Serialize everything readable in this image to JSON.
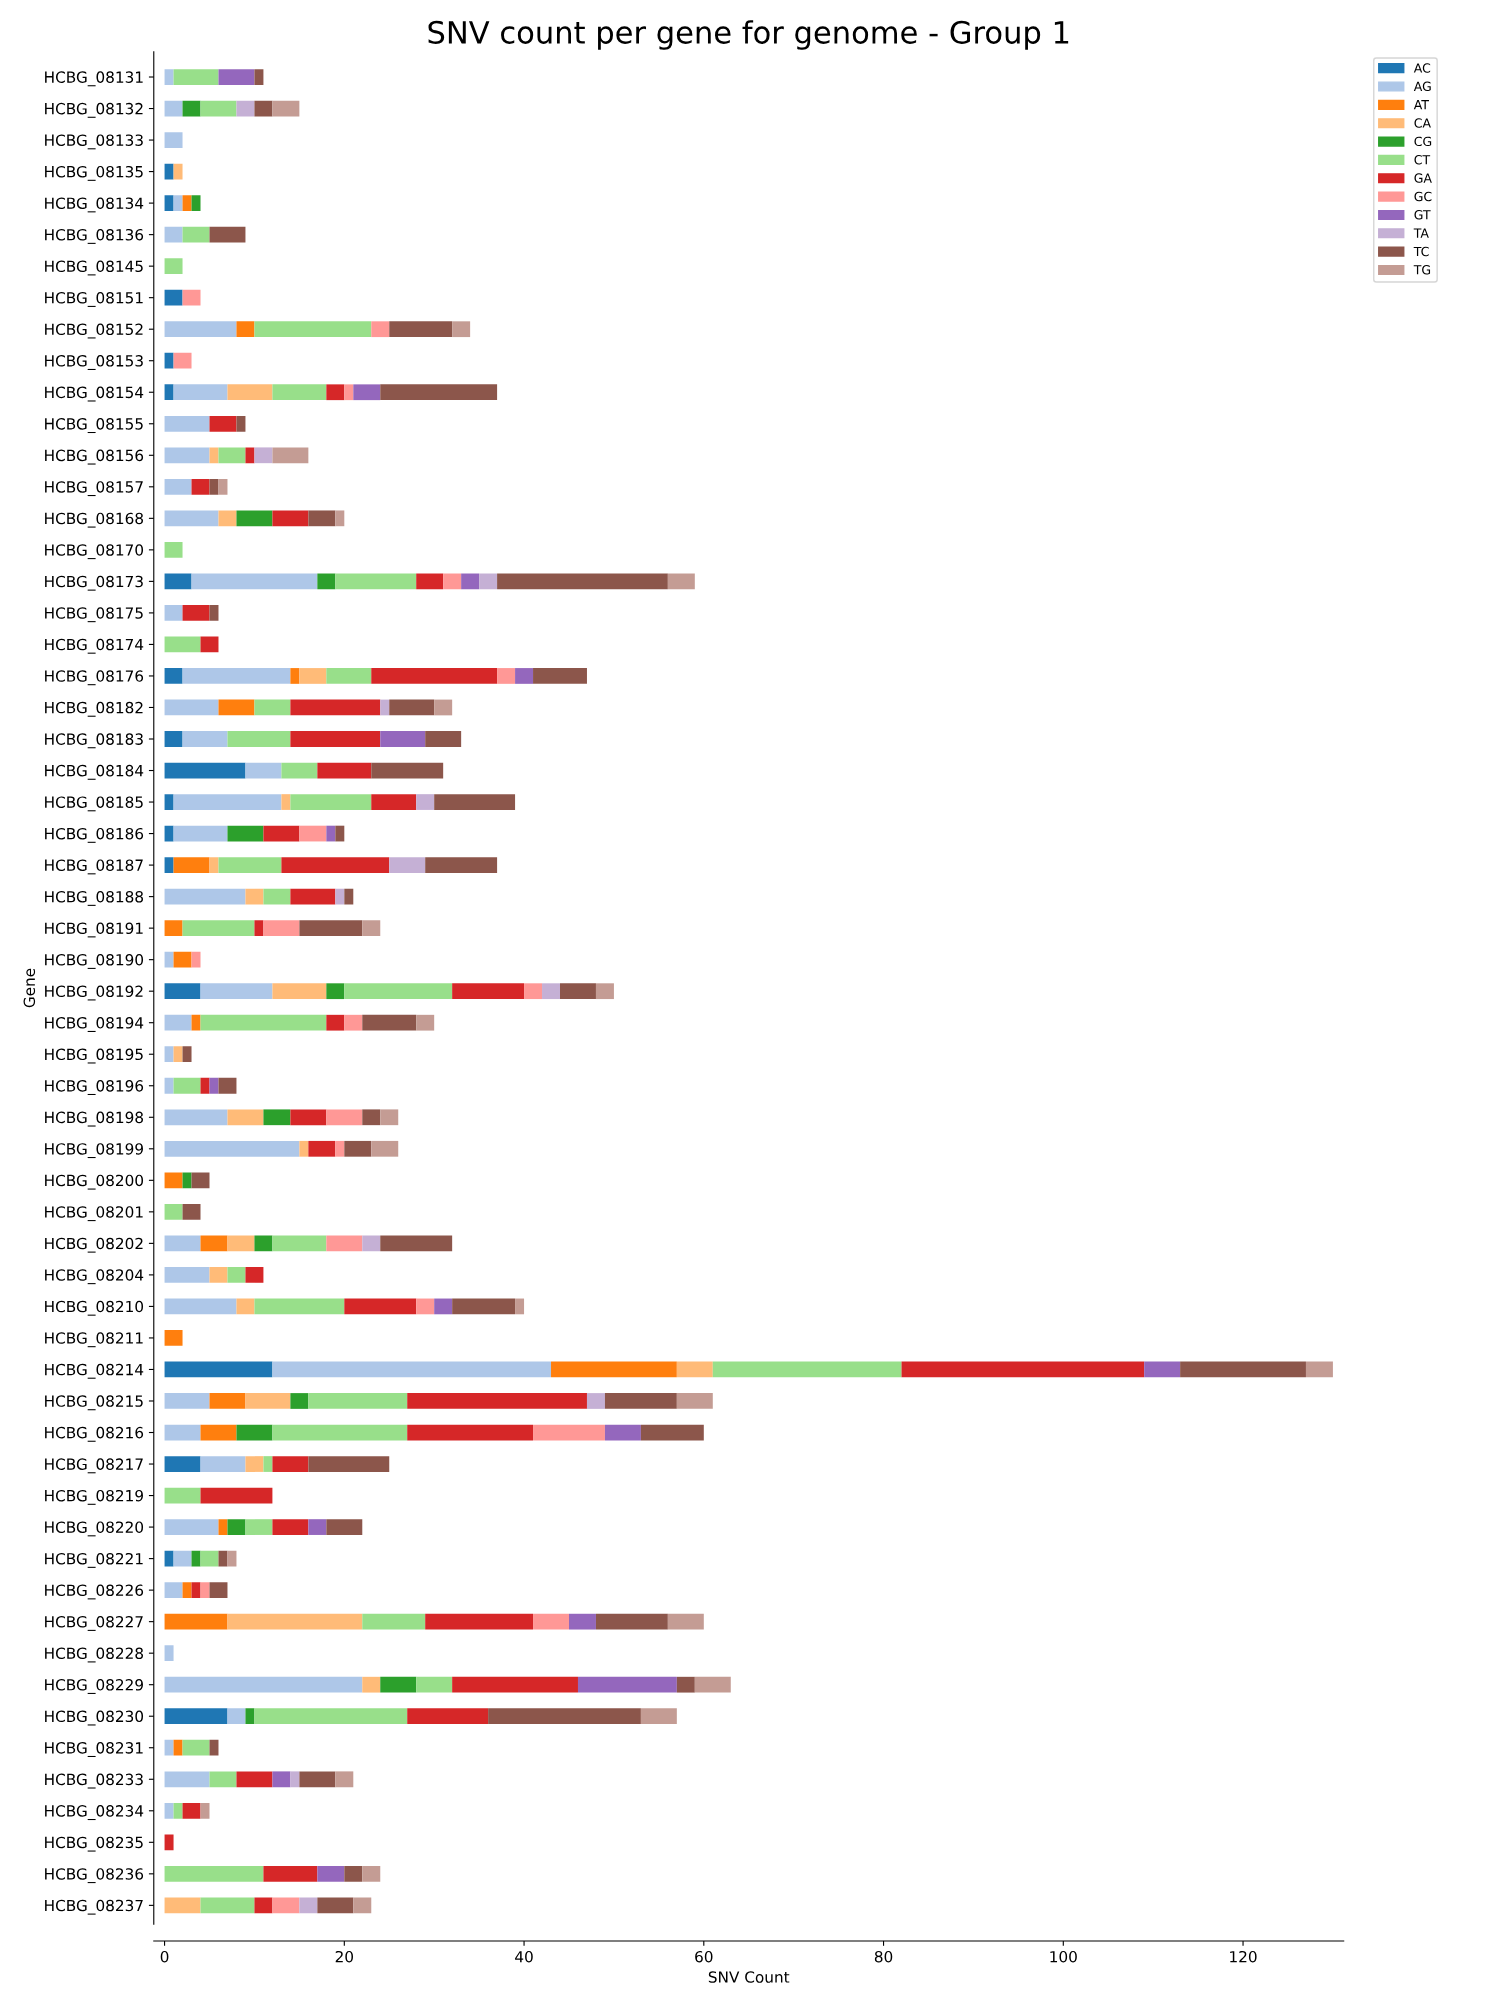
{
  "chart_data": {
    "type": "bar",
    "orientation": "horizontal",
    "stacked": true,
    "title": "SNV count per gene for genome - Group 1",
    "xlabel": "SNV Count",
    "ylabel": "Gene",
    "categories": [
      "HCBG_08131",
      "HCBG_08132",
      "HCBG_08133",
      "HCBG_08135",
      "HCBG_08134",
      "HCBG_08136",
      "HCBG_08145",
      "HCBG_08151",
      "HCBG_08152",
      "HCBG_08153",
      "HCBG_08154",
      "HCBG_08155",
      "HCBG_08156",
      "HCBG_08157",
      "HCBG_08168",
      "HCBG_08170",
      "HCBG_08173",
      "HCBG_08175",
      "HCBG_08174",
      "HCBG_08176",
      "HCBG_08182",
      "HCBG_08183",
      "HCBG_08184",
      "HCBG_08185",
      "HCBG_08186",
      "HCBG_08187",
      "HCBG_08188",
      "HCBG_08191",
      "HCBG_08190",
      "HCBG_08192",
      "HCBG_08194",
      "HCBG_08195",
      "HCBG_08196",
      "HCBG_08198",
      "HCBG_08199",
      "HCBG_08200",
      "HCBG_08201",
      "HCBG_08202",
      "HCBG_08204",
      "HCBG_08210",
      "HCBG_08211",
      "HCBG_08214",
      "HCBG_08215",
      "HCBG_08216",
      "HCBG_08217",
      "HCBG_08219",
      "HCBG_08220",
      "HCBG_08221",
      "HCBG_08226",
      "HCBG_08227",
      "HCBG_08228",
      "HCBG_08229",
      "HCBG_08230",
      "HCBG_08231",
      "HCBG_08233",
      "HCBG_08234",
      "HCBG_08235",
      "HCBG_08236",
      "HCBG_08237"
    ],
    "series": [
      {
        "name": "AC",
        "color": "#1f77b4",
        "values": [
          0,
          0,
          0,
          1,
          1,
          0,
          0,
          2,
          0,
          1,
          1,
          0,
          0,
          0,
          0,
          0,
          3,
          0,
          0,
          2,
          0,
          2,
          9,
          1,
          1,
          1,
          0,
          0,
          0,
          4,
          0,
          0,
          0,
          0,
          0,
          0,
          0,
          0,
          0,
          0,
          0,
          12,
          0,
          0,
          4,
          0,
          0,
          1,
          0,
          0,
          0,
          0,
          7,
          0,
          0,
          0,
          0,
          0,
          0
        ]
      },
      {
        "name": "AG",
        "color": "#aec7e8",
        "values": [
          1,
          2,
          2,
          0,
          1,
          2,
          0,
          0,
          8,
          0,
          6,
          5,
          5,
          3,
          6,
          0,
          14,
          2,
          0,
          12,
          6,
          5,
          4,
          12,
          6,
          0,
          9,
          0,
          1,
          8,
          3,
          1,
          1,
          7,
          15,
          0,
          0,
          4,
          5,
          8,
          0,
          31,
          5,
          4,
          5,
          0,
          6,
          2,
          2,
          0,
          1,
          22,
          2,
          1,
          5,
          1,
          0,
          0,
          0
        ]
      },
      {
        "name": "AT",
        "color": "#ff7f0e",
        "values": [
          0,
          0,
          0,
          0,
          1,
          0,
          0,
          0,
          2,
          0,
          0,
          0,
          0,
          0,
          0,
          0,
          0,
          0,
          0,
          1,
          4,
          0,
          0,
          0,
          0,
          4,
          0,
          2,
          2,
          0,
          1,
          0,
          0,
          0,
          0,
          2,
          0,
          3,
          0,
          0,
          2,
          14,
          4,
          4,
          0,
          0,
          1,
          0,
          1,
          7,
          0,
          0,
          0,
          1,
          0,
          0,
          0,
          0,
          0
        ]
      },
      {
        "name": "CA",
        "color": "#ffbb78",
        "values": [
          0,
          0,
          0,
          1,
          0,
          0,
          0,
          0,
          0,
          0,
          5,
          0,
          1,
          0,
          2,
          0,
          0,
          0,
          0,
          3,
          0,
          0,
          0,
          1,
          0,
          1,
          2,
          0,
          0,
          6,
          0,
          1,
          0,
          4,
          1,
          0,
          0,
          3,
          2,
          2,
          0,
          4,
          5,
          0,
          2,
          0,
          0,
          0,
          0,
          15,
          0,
          2,
          0,
          0,
          0,
          0,
          0,
          0,
          4
        ]
      },
      {
        "name": "CG",
        "color": "#2ca02c",
        "values": [
          0,
          2,
          0,
          0,
          1,
          0,
          0,
          0,
          0,
          0,
          0,
          0,
          0,
          0,
          4,
          0,
          2,
          0,
          0,
          0,
          0,
          0,
          0,
          0,
          4,
          0,
          0,
          0,
          0,
          2,
          0,
          0,
          0,
          3,
          0,
          1,
          0,
          2,
          0,
          0,
          0,
          0,
          2,
          4,
          0,
          0,
          2,
          1,
          0,
          0,
          0,
          4,
          1,
          0,
          0,
          0,
          0,
          0,
          0
        ]
      },
      {
        "name": "CT",
        "color": "#98df8a",
        "values": [
          5,
          4,
          0,
          0,
          0,
          3,
          2,
          0,
          13,
          0,
          6,
          0,
          3,
          0,
          0,
          2,
          9,
          0,
          4,
          5,
          4,
          7,
          4,
          9,
          0,
          7,
          3,
          8,
          0,
          12,
          14,
          0,
          3,
          0,
          0,
          0,
          2,
          6,
          2,
          10,
          0,
          21,
          11,
          15,
          1,
          4,
          3,
          2,
          0,
          7,
          0,
          4,
          17,
          3,
          3,
          1,
          0,
          11,
          6
        ]
      },
      {
        "name": "GA",
        "color": "#d62728",
        "values": [
          0,
          0,
          0,
          0,
          0,
          0,
          0,
          0,
          0,
          0,
          2,
          3,
          1,
          2,
          4,
          0,
          3,
          3,
          2,
          14,
          10,
          10,
          6,
          5,
          4,
          12,
          5,
          1,
          0,
          8,
          2,
          0,
          1,
          4,
          3,
          0,
          0,
          0,
          2,
          8,
          0,
          27,
          20,
          14,
          4,
          8,
          4,
          0,
          1,
          12,
          0,
          14,
          9,
          0,
          4,
          2,
          1,
          6,
          2
        ]
      },
      {
        "name": "GC",
        "color": "#ff9896",
        "values": [
          0,
          0,
          0,
          0,
          0,
          0,
          0,
          2,
          2,
          2,
          1,
          0,
          0,
          0,
          0,
          0,
          2,
          0,
          0,
          2,
          0,
          0,
          0,
          0,
          3,
          0,
          0,
          4,
          1,
          2,
          2,
          0,
          0,
          4,
          1,
          0,
          0,
          4,
          0,
          2,
          0,
          0,
          0,
          8,
          0,
          0,
          0,
          0,
          1,
          4,
          0,
          0,
          0,
          0,
          0,
          0,
          0,
          0,
          3
        ]
      },
      {
        "name": "GT",
        "color": "#9467bd",
        "values": [
          4,
          0,
          0,
          0,
          0,
          0,
          0,
          0,
          0,
          0,
          3,
          0,
          0,
          0,
          0,
          0,
          2,
          0,
          0,
          2,
          0,
          5,
          0,
          0,
          1,
          0,
          0,
          0,
          0,
          0,
          0,
          0,
          1,
          0,
          0,
          0,
          0,
          0,
          0,
          2,
          0,
          4,
          0,
          4,
          0,
          0,
          2,
          0,
          0,
          3,
          0,
          11,
          0,
          0,
          2,
          0,
          0,
          3,
          0
        ]
      },
      {
        "name": "TA",
        "color": "#c5b0d5",
        "values": [
          0,
          2,
          0,
          0,
          0,
          0,
          0,
          0,
          0,
          0,
          0,
          0,
          2,
          0,
          0,
          0,
          2,
          0,
          0,
          0,
          1,
          0,
          0,
          2,
          0,
          4,
          1,
          0,
          0,
          2,
          0,
          0,
          0,
          0,
          0,
          0,
          0,
          2,
          0,
          0,
          0,
          0,
          2,
          0,
          0,
          0,
          0,
          0,
          0,
          0,
          0,
          0,
          0,
          0,
          1,
          0,
          0,
          0,
          2
        ]
      },
      {
        "name": "TC",
        "color": "#8c564b",
        "values": [
          1,
          2,
          0,
          0,
          0,
          4,
          0,
          0,
          7,
          0,
          13,
          1,
          0,
          1,
          3,
          0,
          19,
          1,
          0,
          6,
          5,
          4,
          8,
          9,
          1,
          8,
          1,
          7,
          0,
          4,
          6,
          1,
          2,
          2,
          3,
          2,
          2,
          8,
          0,
          7,
          0,
          14,
          8,
          7,
          9,
          0,
          4,
          1,
          2,
          8,
          0,
          2,
          17,
          1,
          4,
          0,
          0,
          2,
          4
        ]
      },
      {
        "name": "TG",
        "color": "#c49c94",
        "values": [
          0,
          3,
          0,
          0,
          0,
          0,
          0,
          0,
          2,
          0,
          0,
          0,
          4,
          1,
          1,
          0,
          3,
          0,
          0,
          0,
          2,
          0,
          0,
          0,
          0,
          0,
          0,
          2,
          0,
          2,
          2,
          0,
          0,
          2,
          3,
          0,
          0,
          0,
          0,
          1,
          0,
          3,
          4,
          0,
          0,
          0,
          0,
          1,
          0,
          4,
          0,
          4,
          4,
          0,
          2,
          1,
          0,
          2,
          2
        ]
      }
    ],
    "xlim": [
      -1.2,
      131.2
    ],
    "xticks": [
      0,
      20,
      40,
      60,
      80,
      100,
      120
    ],
    "grid": false,
    "legend": "top right"
  }
}
